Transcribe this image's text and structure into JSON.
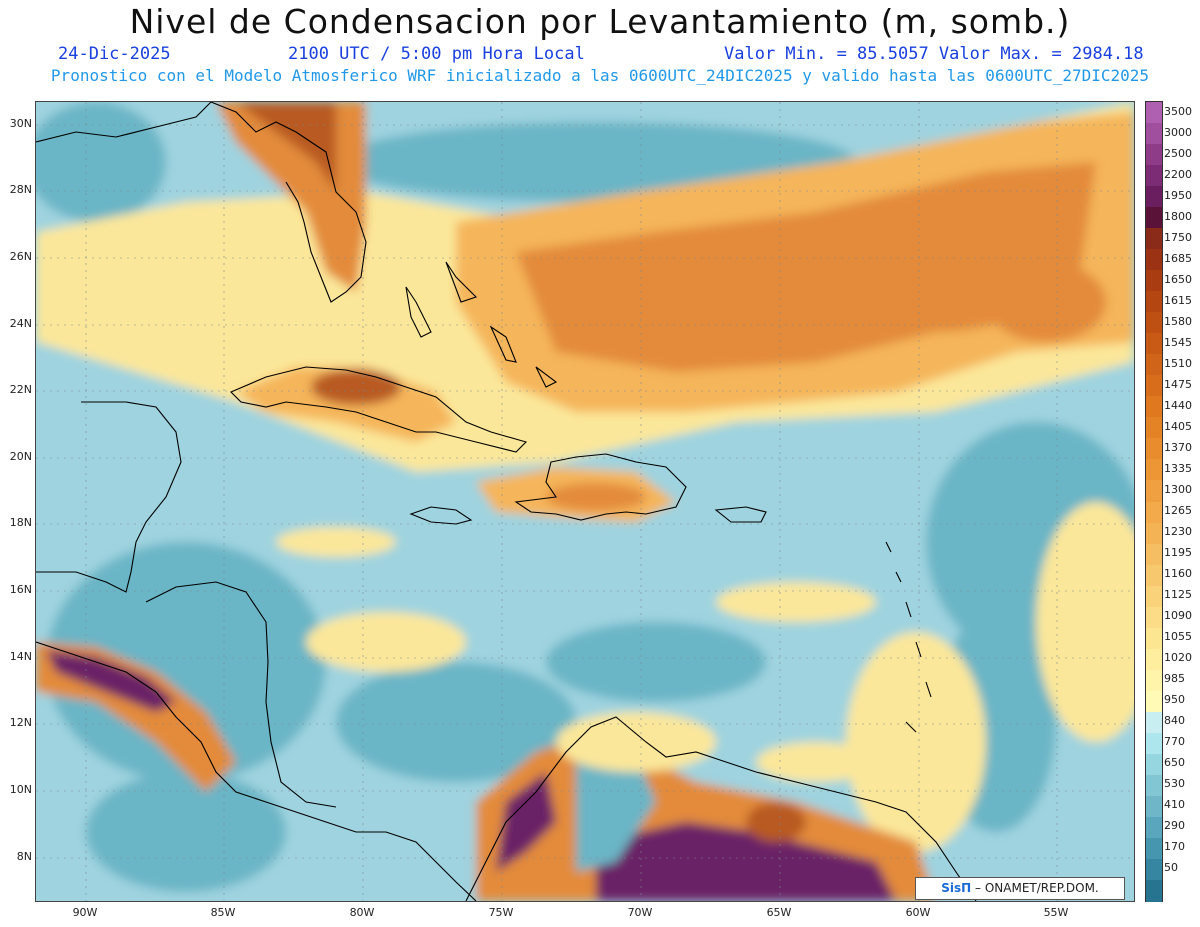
{
  "title": "Nivel de Condensacion por Levantamiento (m, somb.)",
  "subtitle": {
    "date": "24-Dic-2025",
    "time": "2100 UTC / 5:00 pm Hora Local",
    "minmax": "Valor Min. = 85.5057  Valor Max. = 2984.18"
  },
  "model_line": "Pronostico con el Modelo Atmosferico WRF inicializado a las 0600UTC_24DIC2025 y valido hasta las  0600UTC_27DIC2025",
  "lat_labels": [
    "30N",
    "28N",
    "26N",
    "24N",
    "22N",
    "20N",
    "18N",
    "16N",
    "14N",
    "12N",
    "10N",
    "8N"
  ],
  "lon_labels": [
    "90W",
    "85W",
    "80W",
    "75W",
    "70W",
    "65W",
    "60W",
    "55W"
  ],
  "colorbar": [
    {
      "label": "3500",
      "color": "#b060b0"
    },
    {
      "label": "3000",
      "color": "#a04e9e"
    },
    {
      "label": "2500",
      "color": "#8e3c88"
    },
    {
      "label": "2200",
      "color": "#7c2c74"
    },
    {
      "label": "1950",
      "color": "#6a1e60"
    },
    {
      "label": "1800",
      "color": "#5a1238"
    },
    {
      "label": "1750",
      "color": "#8a2a18"
    },
    {
      "label": "1685",
      "color": "#9c3214"
    },
    {
      "label": "1650",
      "color": "#aa3c12"
    },
    {
      "label": "1615",
      "color": "#b44612"
    },
    {
      "label": "1580",
      "color": "#be5014"
    },
    {
      "label": "1545",
      "color": "#c85a16"
    },
    {
      "label": "1510",
      "color": "#d06418"
    },
    {
      "label": "1475",
      "color": "#d86e1c"
    },
    {
      "label": "1440",
      "color": "#e07820"
    },
    {
      "label": "1405",
      "color": "#e48226"
    },
    {
      "label": "1370",
      "color": "#e88c2e"
    },
    {
      "label": "1335",
      "color": "#ec9636"
    },
    {
      "label": "1300",
      "color": "#f0a040"
    },
    {
      "label": "1265",
      "color": "#f2aa4a"
    },
    {
      "label": "1230",
      "color": "#f4b456"
    },
    {
      "label": "1195",
      "color": "#f6be62"
    },
    {
      "label": "1160",
      "color": "#f8c86e"
    },
    {
      "label": "1125",
      "color": "#fad27a"
    },
    {
      "label": "1090",
      "color": "#fcdc86"
    },
    {
      "label": "1055",
      "color": "#fde692"
    },
    {
      "label": "1020",
      "color": "#feee9e"
    },
    {
      "label": "985",
      "color": "#fff4aa"
    },
    {
      "label": "950",
      "color": "#fffab6"
    },
    {
      "label": "840",
      "color": "#c8eef2"
    },
    {
      "label": "770",
      "color": "#ade6ec"
    },
    {
      "label": "650",
      "color": "#96d6e0"
    },
    {
      "label": "530",
      "color": "#82c6d4"
    },
    {
      "label": "410",
      "color": "#6eb6c8"
    },
    {
      "label": "290",
      "color": "#5aa6bc"
    },
    {
      "label": "170",
      "color": "#4696b0"
    },
    {
      "label": "50",
      "color": "#3686a2"
    },
    {
      "label": "",
      "color": "#267490"
    }
  ],
  "credit": {
    "logo": "SisΠ",
    "text": "– ONAMET/REP.DOM."
  },
  "field_colors": {
    "ocean": "#9fd3df",
    "ocean_dark": "#6bb5c6",
    "yellow": "#fbe79a",
    "orange_light": "#f5b55a",
    "orange": "#e38b3a",
    "brown": "#b85a22",
    "purple": "#6a2466",
    "coast": "#000000"
  }
}
